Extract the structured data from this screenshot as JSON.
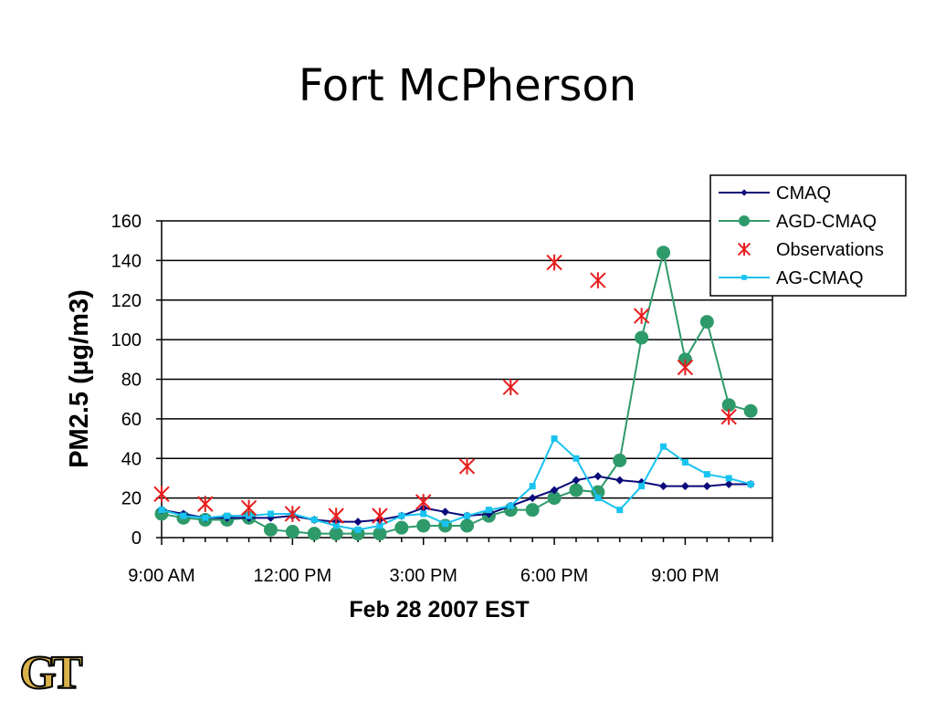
{
  "slide": {
    "title": "Fort McPherson"
  },
  "colors": {
    "cmaq": "#0a0a7a",
    "agd_cmaq": "#2e9a6a",
    "observations": "#e81c1c",
    "ag_cmaq": "#19c3f0",
    "logo_gold": "#d8b14a"
  },
  "chart_data": {
    "type": "line",
    "title": "",
    "xlabel": "Feb 28 2007 EST",
    "ylabel": "PM2.5 (µg/m3)",
    "ylim": [
      0,
      160
    ],
    "yticks": [
      0,
      20,
      40,
      60,
      80,
      100,
      120,
      140,
      160
    ],
    "xlim": [
      9,
      23
    ],
    "xticks": [
      {
        "value": 9,
        "label": "9:00 AM"
      },
      {
        "value": 12,
        "label": "12:00 PM"
      },
      {
        "value": 15,
        "label": "3:00 PM"
      },
      {
        "value": 18,
        "label": "6:00 PM"
      },
      {
        "value": 21,
        "label": "9:00 PM"
      }
    ],
    "grid": "horizontal",
    "legend_position": "top-right",
    "x": [
      9,
      9.5,
      10,
      10.5,
      11,
      11.5,
      12,
      12.5,
      13,
      13.5,
      14,
      14.5,
      15,
      15.5,
      16,
      16.5,
      17,
      17.5,
      18,
      18.5,
      19,
      19.5,
      20,
      20.5,
      21,
      21.5,
      22,
      22.5
    ],
    "series": [
      {
        "name": "CMAQ",
        "marker": "diamond",
        "values": [
          14,
          12,
          10,
          10,
          10,
          10,
          11,
          9,
          8,
          8,
          9,
          11,
          15,
          13,
          11,
          12,
          16,
          20,
          24,
          29,
          31,
          29,
          28,
          26,
          26,
          26,
          27,
          27
        ]
      },
      {
        "name": "AGD-CMAQ",
        "marker": "circle",
        "values": [
          12,
          10,
          9,
          9,
          10,
          4,
          3,
          2,
          2,
          2,
          2,
          5,
          6,
          6,
          6,
          11,
          14,
          14,
          20,
          24,
          23,
          39,
          101,
          144,
          90,
          109,
          67,
          64
        ]
      },
      {
        "name": "Observations",
        "marker": "star",
        "line": false,
        "points": [
          {
            "x": 9,
            "y": 22
          },
          {
            "x": 10,
            "y": 17
          },
          {
            "x": 11,
            "y": 15
          },
          {
            "x": 12,
            "y": 12
          },
          {
            "x": 13,
            "y": 11
          },
          {
            "x": 14,
            "y": 11
          },
          {
            "x": 15,
            "y": 18
          },
          {
            "x": 16,
            "y": 36
          },
          {
            "x": 17,
            "y": 76
          },
          {
            "x": 18,
            "y": 139
          },
          {
            "x": 19,
            "y": 130
          },
          {
            "x": 20,
            "y": 112
          },
          {
            "x": 21,
            "y": 86
          },
          {
            "x": 22,
            "y": 61
          }
        ]
      },
      {
        "name": "AG-CMAQ",
        "marker": "square",
        "values": [
          14,
          11,
          10,
          11,
          11,
          12,
          12,
          9,
          6,
          4,
          6,
          11,
          12,
          7,
          11,
          14,
          16,
          26,
          50,
          40,
          20,
          14,
          26,
          46,
          38,
          32,
          30,
          27
        ]
      }
    ]
  },
  "logo": {
    "text": "GT"
  }
}
